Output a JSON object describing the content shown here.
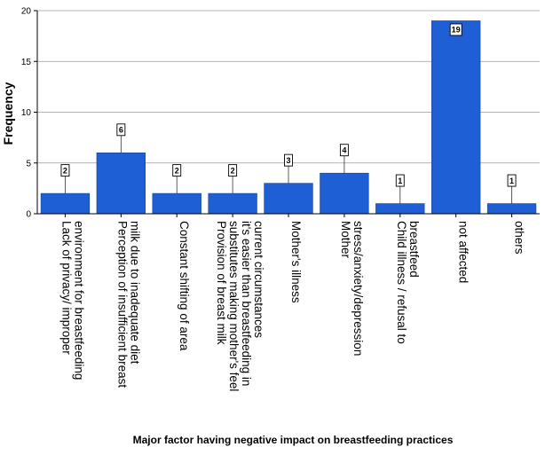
{
  "chart_data": {
    "type": "bar",
    "categories": [
      [
        "Lack of privacy/ improper",
        "environment for breastfeeding"
      ],
      [
        "Perception of insufficient breast",
        "milk due to inadequate diet"
      ],
      [
        "Constant shifting of area"
      ],
      [
        "Provision of breast milk",
        "substitutes making mother's feel",
        "it's easier than breastfeeding in",
        "current circumstances"
      ],
      [
        "Mother's illness"
      ],
      [
        "Mother",
        "stress/anxiety/depression"
      ],
      [
        "Child illness / refusal to",
        "breastfeed"
      ],
      [
        "not affected"
      ],
      [
        "others"
      ]
    ],
    "values": [
      2,
      6,
      2,
      2,
      3,
      4,
      1,
      19,
      1
    ],
    "data_labels": [
      "2",
      "6",
      "2",
      "2",
      "3",
      "4",
      "1",
      "19",
      "1"
    ],
    "xlabel": "Major factor having negative impact on breastfeeding practices",
    "ylabel": "Frequency",
    "ylim": [
      0,
      20
    ],
    "yticks": [
      0,
      5,
      10,
      15,
      20
    ],
    "grid": true,
    "bar_color": "#1f5fd6"
  }
}
